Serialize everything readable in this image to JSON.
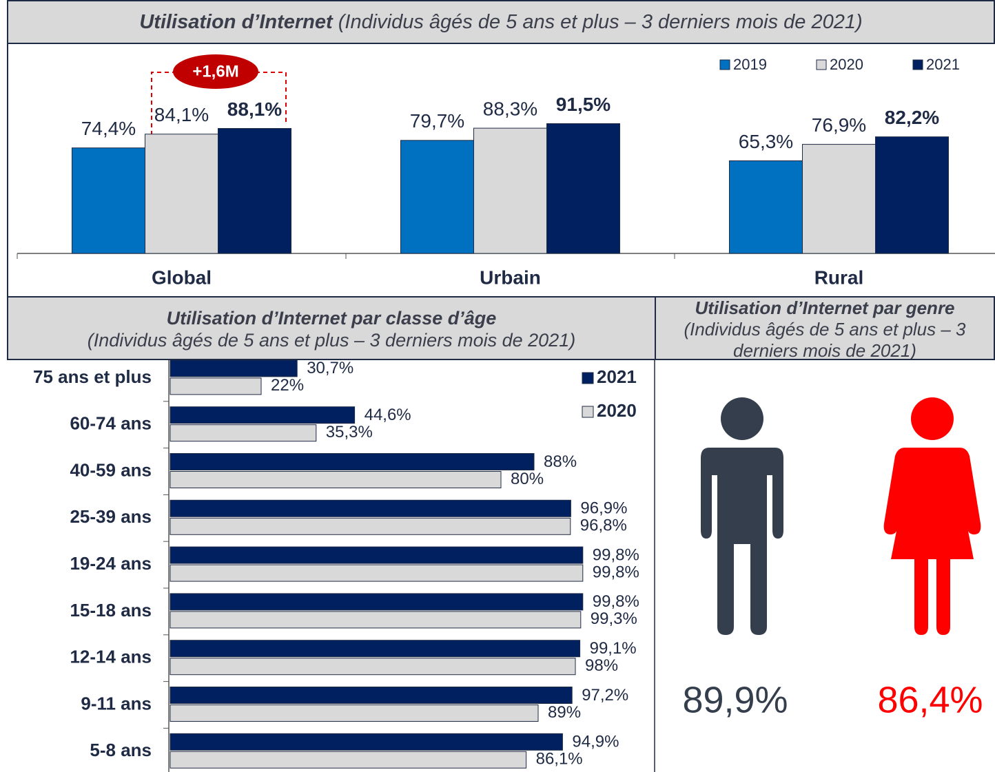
{
  "chart_data": [
    {
      "type": "grouped-bar",
      "title": "Utilisation d’Internet",
      "subtitle": "(Individus âgés de 5 ans et plus – 3 derniers mois de 2021)",
      "categories": [
        "Global",
        "Urbain",
        "Rural"
      ],
      "series": [
        {
          "name": "2019",
          "color": "#0070c0",
          "values": [
            74.4,
            79.7,
            65.3
          ],
          "value_labels": [
            "74,4%",
            "79,7%",
            "65,3%"
          ]
        },
        {
          "name": "2020",
          "color": "#d9d9d9",
          "values": [
            84.1,
            88.3,
            76.9
          ],
          "value_labels": [
            "84,1%",
            "88,3%",
            "76,9%"
          ]
        },
        {
          "name": "2021",
          "color": "#002060",
          "values": [
            88.1,
            91.5,
            82.2
          ],
          "value_labels": [
            "88,1%",
            "91,5%",
            "82,2%"
          ]
        }
      ],
      "annotation": "+1,6M",
      "ylim": [
        0,
        100
      ],
      "legend": "top-right"
    },
    {
      "type": "horizontal-bar",
      "title": "Utilisation d’Internet par classe d’âge",
      "subtitle": "(Individus âgés de 5 ans et plus – 3 derniers mois de 2021)",
      "categories": [
        "75 ans et plus",
        "60-74 ans",
        "40-59 ans",
        "25-39 ans",
        "19-24 ans",
        "15-18 ans",
        "12-14 ans",
        "9-11 ans",
        "5-8 ans"
      ],
      "series": [
        {
          "name": "2021",
          "color": "#002060",
          "values": [
            30.7,
            44.6,
            88,
            96.9,
            99.8,
            99.8,
            99.1,
            97.2,
            94.9
          ],
          "value_labels": [
            "30,7%",
            "44,6%",
            "88%",
            "96,9%",
            "99,8%",
            "99,8%",
            "99,1%",
            "97,2%",
            "94,9%"
          ]
        },
        {
          "name": "2020",
          "color": "#d9d9d9",
          "values": [
            22,
            35.3,
            80,
            96.8,
            99.8,
            99.3,
            98,
            89,
            86.1
          ],
          "value_labels": [
            "22%",
            "35,3%",
            "80%",
            "96,8%",
            "99,8%",
            "99,3%",
            "98%",
            "89%",
            "86,1%"
          ]
        }
      ],
      "xlim": [
        0,
        100
      ],
      "legend": "top-right"
    },
    {
      "type": "pictogram",
      "title": "Utilisation d’Internet par genre",
      "subtitle": "(Individus âgés de 5 ans et plus – 3 derniers mois de 2021)",
      "values": [
        89.9,
        86.4
      ],
      "value_labels": [
        "89,9%",
        "86,4%"
      ],
      "colors": [
        "#353e4c",
        "#ff0000"
      ]
    }
  ]
}
